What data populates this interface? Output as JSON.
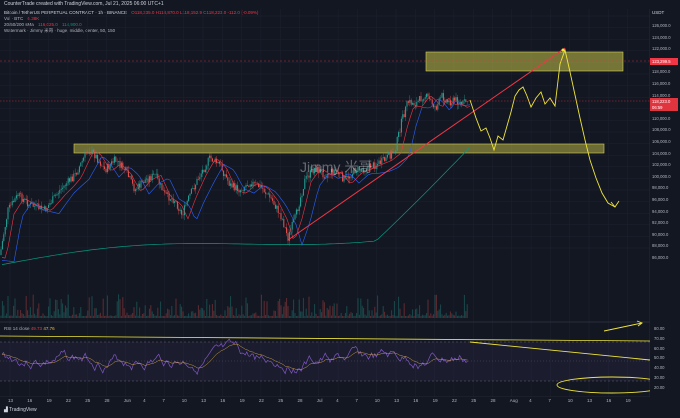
{
  "header": {
    "title": "CounterTrade created with TradingView.com, Jul 21, 2025 06:00 UTC+1"
  },
  "legend": {
    "symbol": "Bitcoin / TetherUS PERPETUAL CONTRACT · 1h · BINANCE",
    "ohlc": "O118,335.0 H118,870.0 L118,152.9 C118,223.0 -112.0 (-0.09%)",
    "ma_label": "MA",
    "ma_value": "105,300.0",
    "ma_value2": "118,100.0",
    "vol_label": "Vol · BTC",
    "vol_value": "6.38K",
    "ema_label": "20/50/200 sMa",
    "ema_values": [
      "116,025.0",
      "114,900.0"
    ],
    "watermark_label": "Watermark · Jimmy 米哥 · huge, middle, center, 50, 150"
  },
  "watermark": "Jimmy 米哥",
  "price_scale": {
    "currency": "USDT",
    "ticks": [
      "126,000.0",
      "124,000.0",
      "122,000.0",
      "120,000.0",
      "118,000.0",
      "116,000.0",
      "114,000.0",
      "112,000.0",
      "110,000.0",
      "108,000.0",
      "106,000.0",
      "104,000.0",
      "102,000.0",
      "100,000.0",
      "98,000.0",
      "96,000.0",
      "94,000.0",
      "92,000.0",
      "90,000.0",
      "88,000.0",
      "86,000.0"
    ],
    "tag_target": "123,299.5",
    "tag_last": "118,223.0",
    "tag_last_sub": "06:59"
  },
  "rsi": {
    "label": "RSI 14 close",
    "value1": "49.73",
    "value2": "47.76",
    "ticks": [
      "80.00",
      "70.00",
      "60.00",
      "50.00",
      "40.00",
      "30.00",
      "20.00"
    ]
  },
  "time_axis": {
    "labels": [
      "13",
      "16",
      "19",
      "22",
      "25",
      "28",
      "Jun",
      "4",
      "7",
      "10",
      "13",
      "16",
      "19",
      "22",
      "25",
      "28",
      "Jul",
      "4",
      "7",
      "10",
      "13",
      "16",
      "19",
      "22",
      "25",
      "28",
      "Aug",
      "4",
      "7",
      "10",
      "13",
      "16",
      "19"
    ]
  },
  "footer": {
    "brand": "TradingView"
  },
  "colors": {
    "background": "#131722",
    "zone": "#c8c24a",
    "projection": "#f0e63c",
    "trendline": "#f23645",
    "ema_fast": "#f23645",
    "ema_slow": "#2962ff",
    "ema_200": "#089981",
    "rsi_line": "#7e57c2"
  }
}
